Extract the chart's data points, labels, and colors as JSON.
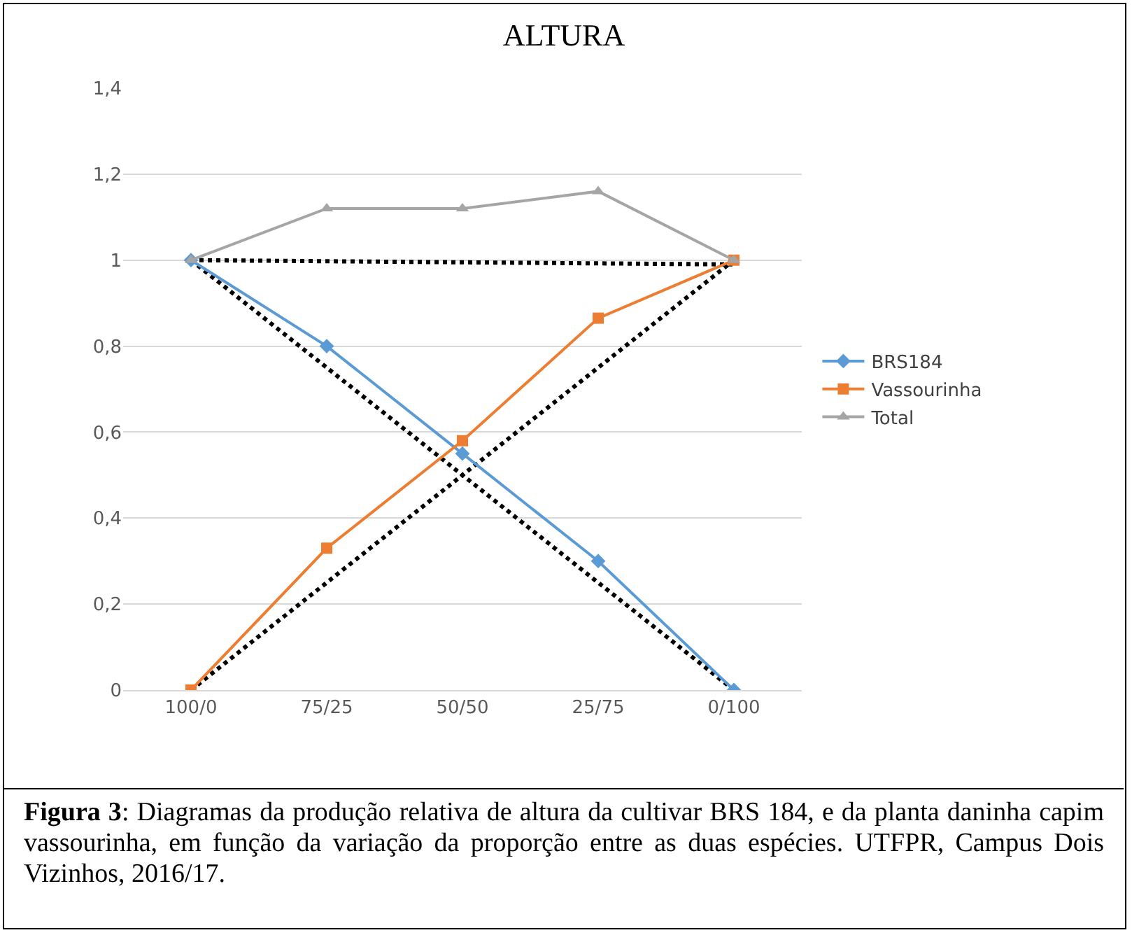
{
  "chart_data": {
    "type": "line",
    "title": "ALTURA",
    "categories": [
      "100/0",
      "75/25",
      "50/50",
      "25/75",
      "0/100"
    ],
    "series": [
      {
        "name": "BRS184",
        "color": "#5b9bd5",
        "marker": "diamond",
        "line_style": "solid",
        "values": [
          1,
          0.8,
          0.55,
          0.3,
          0
        ]
      },
      {
        "name": "Vassourinha",
        "color": "#ed7d31",
        "marker": "square",
        "line_style": "solid",
        "values": [
          0,
          0.33,
          0.58,
          0.865,
          1
        ]
      },
      {
        "name": "Total",
        "color": "#a5a5a5",
        "marker": "triangle",
        "line_style": "solid",
        "values": [
          1,
          1.12,
          1.12,
          1.16,
          1
        ]
      },
      {
        "color": "#000000",
        "marker": "none",
        "line_style": "dotted",
        "values": [
          1,
          null,
          null,
          null,
          0.99
        ]
      },
      {
        "color": "#000000",
        "marker": "none",
        "line_style": "dotted",
        "values": [
          1,
          null,
          null,
          null,
          0
        ]
      },
      {
        "color": "#000000",
        "marker": "none",
        "line_style": "dotted",
        "values": [
          0,
          null,
          null,
          null,
          1
        ]
      }
    ],
    "ylim": [
      0,
      1.4
    ],
    "yticks": [
      0,
      {
        "value": 0.2,
        "label": "0,2"
      },
      {
        "value": 0.4,
        "label": "0,4"
      },
      {
        "value": 0.6,
        "label": "0,6"
      },
      {
        "value": 0.8,
        "label": "0,8"
      },
      1,
      {
        "value": 1.2,
        "label": "1,2"
      },
      {
        "value": 1.4,
        "label": "1,4"
      }
    ],
    "grid": "y",
    "legend": "right",
    "annotations": [
      "Figura 3: Diagramas da produção relativa de altura da cultivar BRS 184, e da planta daninha capim vassourinha, em função da variação da proporção entre as duas espécies. UTFPR, Campus Dois Vizinhos, 2016/17."
    ]
  }
}
